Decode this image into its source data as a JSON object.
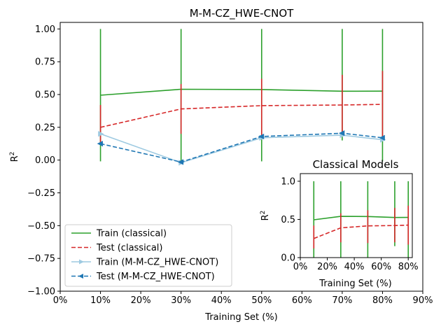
{
  "chart_data": [
    {
      "type": "line",
      "title": "M-M-CZ_HWE-CNOT",
      "xlabel": "Training Set (%)",
      "ylabel_base": "R",
      "ylabel_sup": "2",
      "xlim": [
        0,
        90
      ],
      "ylim": [
        -1.0,
        1.05
      ],
      "xticks": [
        0,
        10,
        20,
        30,
        40,
        50,
        60,
        70,
        80,
        90
      ],
      "xtick_labels": [
        "0%",
        "10%",
        "20%",
        "30%",
        "40%",
        "50%",
        "60%",
        "70%",
        "80%",
        "90%"
      ],
      "yticks": [
        -1.0,
        -0.75,
        -0.5,
        -0.25,
        0.0,
        0.25,
        0.5,
        0.75,
        1.0
      ],
      "ytick_labels": [
        "−1.00",
        "−0.75",
        "−0.50",
        "−0.25",
        "0.00",
        "0.25",
        "0.50",
        "0.75",
        "1.00"
      ],
      "legend_position": "lower-left",
      "series": [
        {
          "name": "Train (classical)",
          "color": "#2ca02c",
          "style": "solid",
          "marker": "none",
          "x": [
            10,
            30,
            50,
            70,
            80
          ],
          "y": [
            0.495,
            0.54,
            0.538,
            0.525,
            0.526
          ],
          "err_low": [
            -0.01,
            -0.01,
            -0.01,
            0.15,
            -0.01
          ],
          "err_high": [
            1.0,
            1.0,
            1.0,
            1.0,
            1.0
          ]
        },
        {
          "name": "Test (classical)",
          "color": "#d62728",
          "style": "dashed",
          "marker": "none",
          "x": [
            10,
            30,
            50,
            70,
            80
          ],
          "y": [
            0.25,
            0.39,
            0.415,
            0.42,
            0.425
          ],
          "err_low": [
            0.13,
            0.2,
            0.19,
            0.2,
            0.18
          ],
          "err_high": [
            0.42,
            0.58,
            0.62,
            0.65,
            0.68
          ]
        },
        {
          "name": "Train (M-M-CZ_HWE-CNOT)",
          "color": "#9ecae1",
          "style": "solid",
          "marker": "triangle-right",
          "x": [
            10,
            30,
            50,
            70,
            80
          ],
          "y": [
            0.2,
            -0.02,
            0.17,
            0.19,
            0.155
          ],
          "err_low": [],
          "err_high": []
        },
        {
          "name": "Test (M-M-CZ_HWE-CNOT)",
          "color": "#1f77b4",
          "style": "dashed",
          "marker": "triangle-left",
          "x": [
            10,
            30,
            50,
            70,
            80
          ],
          "y": [
            0.125,
            -0.015,
            0.18,
            0.205,
            0.17
          ],
          "err_low": [],
          "err_high": []
        }
      ]
    },
    {
      "type": "line",
      "title": "Classical Models",
      "xlabel": "Training Set (%)",
      "ylabel_base": "R",
      "ylabel_sup": "2",
      "xlim": [
        0,
        83
      ],
      "ylim": [
        0,
        1.1
      ],
      "xticks": [
        0,
        20,
        40,
        60,
        80
      ],
      "xtick_labels": [
        "0%",
        "20%",
        "40%",
        "60%",
        "80%"
      ],
      "yticks": [
        0,
        0.5,
        1.0
      ],
      "ytick_labels": [
        "0.0",
        "0.5",
        "1.0"
      ],
      "series": [
        {
          "color": "#2ca02c",
          "style": "solid",
          "x": [
            10,
            30,
            50,
            70,
            80
          ],
          "y": [
            0.495,
            0.54,
            0.538,
            0.525,
            0.526
          ],
          "err_low": [
            0.0,
            0.0,
            0.0,
            0.15,
            0.0
          ],
          "err_high": [
            1.0,
            1.0,
            1.0,
            1.0,
            1.0
          ]
        },
        {
          "color": "#d62728",
          "style": "dashed",
          "x": [
            10,
            30,
            50,
            70,
            80
          ],
          "y": [
            0.25,
            0.39,
            0.415,
            0.42,
            0.425
          ],
          "err_low": [
            0.12,
            0.2,
            0.19,
            0.2,
            0.17
          ],
          "err_high": [
            0.42,
            0.58,
            0.62,
            0.65,
            0.68
          ]
        }
      ]
    }
  ]
}
